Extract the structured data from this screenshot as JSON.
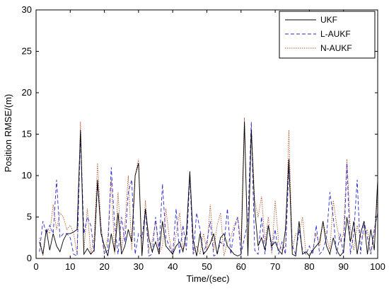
{
  "chart_data": {
    "type": "line",
    "title": "",
    "xlabel": "Time/(sec)",
    "ylabel": "Position RMSE/(m)",
    "xlim": [
      0,
      100
    ],
    "ylim": [
      0,
      30
    ],
    "xticks": [
      0,
      10,
      20,
      30,
      40,
      50,
      60,
      70,
      80,
      90,
      100
    ],
    "yticks": [
      0,
      5,
      10,
      15,
      20,
      25,
      30
    ],
    "grid": false,
    "legend_position": "top-right",
    "x": [
      1,
      2,
      3,
      4,
      5,
      6,
      7,
      8,
      9,
      10,
      11,
      12,
      13,
      14,
      15,
      16,
      17,
      18,
      19,
      20,
      21,
      22,
      23,
      24,
      25,
      26,
      27,
      28,
      29,
      30,
      31,
      32,
      33,
      34,
      35,
      36,
      37,
      38,
      39,
      40,
      41,
      42,
      43,
      44,
      45,
      46,
      47,
      48,
      49,
      50,
      51,
      52,
      53,
      54,
      55,
      56,
      57,
      58,
      59,
      60,
      61,
      62,
      63,
      64,
      65,
      66,
      67,
      68,
      69,
      70,
      71,
      72,
      73,
      74,
      75,
      76,
      77,
      78,
      79,
      80,
      81,
      82,
      83,
      84,
      85,
      86,
      87,
      88,
      89,
      90,
      91,
      92,
      93,
      94,
      95,
      96,
      97,
      98,
      99,
      100
    ],
    "series": [
      {
        "name": "UKF",
        "color": "#000000",
        "dash": "solid",
        "values": [
          2.0,
          0.5,
          3.5,
          1.0,
          3.0,
          1.5,
          0.8,
          2.2,
          3.0,
          3.0,
          3.2,
          3.5,
          15.5,
          0.5,
          1.2,
          0.5,
          1.0,
          9.5,
          3.0,
          1.5,
          0.3,
          3.0,
          0.8,
          5.5,
          0.5,
          1.5,
          3.5,
          2.0,
          10.0,
          11.5,
          0.3,
          6.0,
          2.5,
          0.8,
          2.0,
          0.5,
          4.5,
          1.5,
          1.0,
          0.5,
          1.5,
          2.0,
          0.8,
          3.0,
          10.5,
          2.2,
          0.3,
          3.0,
          0.5,
          1.0,
          1.8,
          3.0,
          0.5,
          2.5,
          3.0,
          1.5,
          1.0,
          0.5,
          0.3,
          0.5,
          16.5,
          0.3,
          15.5,
          6.0,
          1.5,
          2.5,
          1.0,
          4.0,
          1.5,
          2.0,
          1.0,
          0.5,
          3.5,
          12.0,
          0.5,
          0.3,
          4.5,
          0.5,
          0.8,
          0.3,
          1.0,
          1.5,
          2.0,
          4.5,
          1.5,
          0.5,
          2.5,
          1.0,
          0.3,
          0.8,
          5.0,
          2.0,
          4.5,
          0.5,
          3.0,
          4.5,
          0.5,
          3.5,
          1.0,
          9.5
        ]
      },
      {
        "name": "L-AUKF",
        "color": "#2a2ad6",
        "dash": "dashed",
        "values": [
          0.8,
          4.5,
          3.0,
          4.0,
          3.0,
          9.5,
          2.5,
          3.0,
          3.0,
          2.5,
          0.5,
          0.3,
          15.0,
          3.0,
          5.0,
          4.0,
          0.8,
          9.0,
          3.5,
          0.5,
          1.0,
          11.0,
          4.0,
          0.5,
          5.0,
          2.0,
          8.0,
          9.5,
          0.5,
          3.0,
          2.5,
          6.0,
          0.3,
          0.5,
          5.0,
          1.0,
          9.0,
          2.5,
          1.5,
          0.5,
          6.0,
          0.5,
          4.0,
          1.0,
          10.0,
          0.5,
          5.5,
          3.5,
          0.5,
          2.0,
          4.5,
          0.3,
          0.5,
          2.0,
          1.5,
          6.0,
          0.5,
          3.5,
          5.0,
          0.5,
          2.5,
          4.5,
          16.5,
          1.0,
          0.5,
          5.0,
          0.5,
          4.0,
          1.0,
          3.5,
          0.5,
          2.0,
          0.5,
          11.0,
          1.5,
          0.5,
          3.5,
          1.0,
          0.5,
          1.5,
          0.5,
          4.0,
          0.5,
          1.0,
          2.5,
          8.0,
          5.0,
          0.5,
          3.0,
          0.5,
          11.5,
          0.5,
          3.0,
          9.5,
          0.5,
          4.5,
          2.5,
          0.5,
          3.5,
          5.5
        ]
      },
      {
        "name": "N-AUKF",
        "color": "#b5542a",
        "dash": "dotted",
        "values": [
          2.5,
          0.3,
          3.5,
          3.0,
          6.5,
          3.5,
          5.5,
          5.0,
          3.5,
          4.0,
          3.0,
          0.5,
          16.5,
          1.0,
          6.0,
          0.5,
          2.5,
          11.5,
          4.0,
          0.5,
          2.5,
          9.5,
          0.5,
          8.0,
          1.0,
          4.0,
          10.0,
          1.0,
          10.0,
          12.0,
          0.5,
          7.0,
          1.0,
          2.0,
          4.5,
          0.5,
          1.5,
          6.0,
          2.5,
          0.3,
          3.0,
          5.5,
          1.0,
          3.0,
          10.5,
          0.5,
          1.5,
          0.5,
          3.0,
          1.0,
          6.5,
          1.0,
          4.0,
          5.5,
          0.3,
          2.0,
          2.5,
          4.0,
          5.0,
          2.0,
          17.0,
          0.3,
          16.0,
          7.0,
          5.0,
          7.5,
          2.0,
          5.0,
          0.5,
          7.0,
          2.0,
          1.0,
          1.5,
          15.5,
          1.0,
          3.0,
          3.0,
          5.0,
          0.5,
          0.5,
          1.0,
          3.0,
          1.5,
          4.5,
          2.5,
          1.0,
          7.0,
          4.0,
          2.0,
          3.0,
          12.0,
          3.5,
          1.0,
          4.0,
          2.5,
          3.0,
          3.5,
          0.5,
          3.0,
          7.5
        ]
      }
    ]
  }
}
